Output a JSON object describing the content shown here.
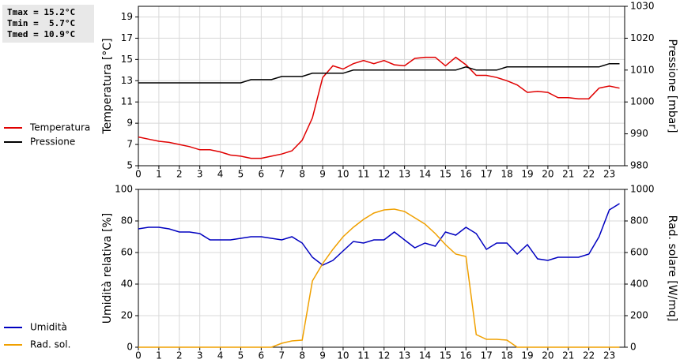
{
  "stats": [
    "Tmax = 15.2°C",
    "Tmin =  5.7°C",
    "Tmed = 10.9°C"
  ],
  "chart_data": [
    {
      "type": "line",
      "ylabel": "Temperatura [°C]",
      "y2label": "Pressione [mbar]",
      "legend": "left",
      "grid": true,
      "x": [
        0,
        0.5,
        1,
        1.5,
        2,
        2.5,
        3,
        3.5,
        4,
        4.5,
        5,
        5.5,
        6,
        6.5,
        7,
        7.5,
        8,
        8.5,
        9,
        9.5,
        10,
        10.5,
        11,
        11.5,
        12,
        12.5,
        13,
        13.5,
        14,
        14.5,
        15,
        15.5,
        16,
        16.5,
        17,
        17.5,
        18,
        18.5,
        19,
        19.5,
        20,
        20.5,
        21,
        21.5,
        22,
        22.5,
        23,
        23.5
      ],
      "xlim": [
        0,
        23.75
      ],
      "xticks": [
        0,
        1,
        2,
        3,
        4,
        5,
        6,
        7,
        8,
        9,
        10,
        11,
        12,
        13,
        14,
        15,
        16,
        17,
        18,
        19,
        20,
        21,
        22,
        23
      ],
      "ylim": [
        5,
        20
      ],
      "yticks": [
        5,
        7,
        9,
        11,
        13,
        15,
        17,
        19
      ],
      "y2lim": [
        980,
        1030
      ],
      "y2ticks": [
        980,
        990,
        1000,
        1010,
        1020,
        1030
      ],
      "series": [
        {
          "name": "Temperatura",
          "color": "#e00000",
          "values": [
            7.7,
            7.5,
            7.3,
            7.2,
            7.0,
            6.8,
            6.5,
            6.5,
            6.3,
            6.0,
            5.9,
            5.7,
            5.7,
            5.9,
            6.1,
            6.4,
            7.4,
            9.5,
            13.3,
            14.4,
            14.1,
            14.6,
            14.9,
            14.6,
            14.9,
            14.5,
            14.4,
            15.1,
            15.2,
            15.2,
            14.4,
            15.2,
            14.5,
            13.5,
            13.5,
            13.3,
            13.0,
            12.6,
            11.9,
            12.0,
            11.9,
            11.4,
            11.4,
            11.3,
            11.3,
            12.3,
            12.5,
            12.3
          ]
        },
        {
          "name": "Pressione",
          "color": "#000000",
          "axis": "y2",
          "values": [
            1006,
            1006,
            1006,
            1006,
            1006,
            1006,
            1006,
            1006,
            1006,
            1006,
            1006,
            1007,
            1007,
            1007,
            1008,
            1008,
            1008,
            1009,
            1009,
            1009,
            1009,
            1010,
            1010,
            1010,
            1010,
            1010,
            1010,
            1010,
            1010,
            1010,
            1010,
            1010,
            1011,
            1010,
            1010,
            1010,
            1011,
            1011,
            1011,
            1011,
            1011,
            1011,
            1011,
            1011,
            1011,
            1011,
            1012,
            1012
          ]
        }
      ]
    },
    {
      "type": "line",
      "ylabel": "Umidità relativa [%]",
      "y2label": "Rad. solare [W/mq]",
      "legend": "left",
      "grid": true,
      "x": [
        0,
        0.5,
        1,
        1.5,
        2,
        2.5,
        3,
        3.5,
        4,
        4.5,
        5,
        5.5,
        6,
        6.5,
        7,
        7.5,
        8,
        8.5,
        9,
        9.5,
        10,
        10.5,
        11,
        11.5,
        12,
        12.5,
        13,
        13.5,
        14,
        14.5,
        15,
        15.5,
        16,
        16.5,
        17,
        17.5,
        18,
        18.5,
        19,
        19.5,
        20,
        20.5,
        21,
        21.5,
        22,
        22.5,
        23,
        23.5
      ],
      "xlim": [
        0,
        23.75
      ],
      "xticks": [
        0,
        1,
        2,
        3,
        4,
        5,
        6,
        7,
        8,
        9,
        10,
        11,
        12,
        13,
        14,
        15,
        16,
        17,
        18,
        19,
        20,
        21,
        22,
        23
      ],
      "ylim": [
        0,
        100
      ],
      "yticks": [
        0,
        20,
        40,
        60,
        80,
        100
      ],
      "y2lim": [
        0,
        1000
      ],
      "y2ticks": [
        0,
        200,
        400,
        600,
        800,
        1000
      ],
      "series": [
        {
          "name": "Umidità",
          "color": "#0000c0",
          "values": [
            75,
            76,
            76,
            75,
            73,
            73,
            72,
            68,
            68,
            68,
            69,
            70,
            70,
            69,
            68,
            70,
            66,
            57,
            52,
            55,
            61,
            67,
            66,
            68,
            68,
            73,
            68,
            63,
            66,
            64,
            73,
            71,
            76,
            72,
            62,
            66,
            66,
            59,
            65,
            56,
            55,
            57,
            57,
            57,
            59,
            70,
            87,
            91
          ]
        },
        {
          "name": "Rad. sol.",
          "color": "#f0a000",
          "axis": "y2",
          "values": [
            0,
            0,
            0,
            0,
            0,
            0,
            0,
            0,
            0,
            0,
            0,
            0,
            0,
            0,
            25,
            40,
            45,
            420,
            530,
            620,
            700,
            760,
            810,
            850,
            870,
            875,
            860,
            820,
            780,
            720,
            650,
            590,
            575,
            80,
            50,
            50,
            45,
            0,
            0,
            0,
            0,
            0,
            0,
            0,
            0,
            0,
            0,
            0
          ]
        }
      ]
    }
  ]
}
